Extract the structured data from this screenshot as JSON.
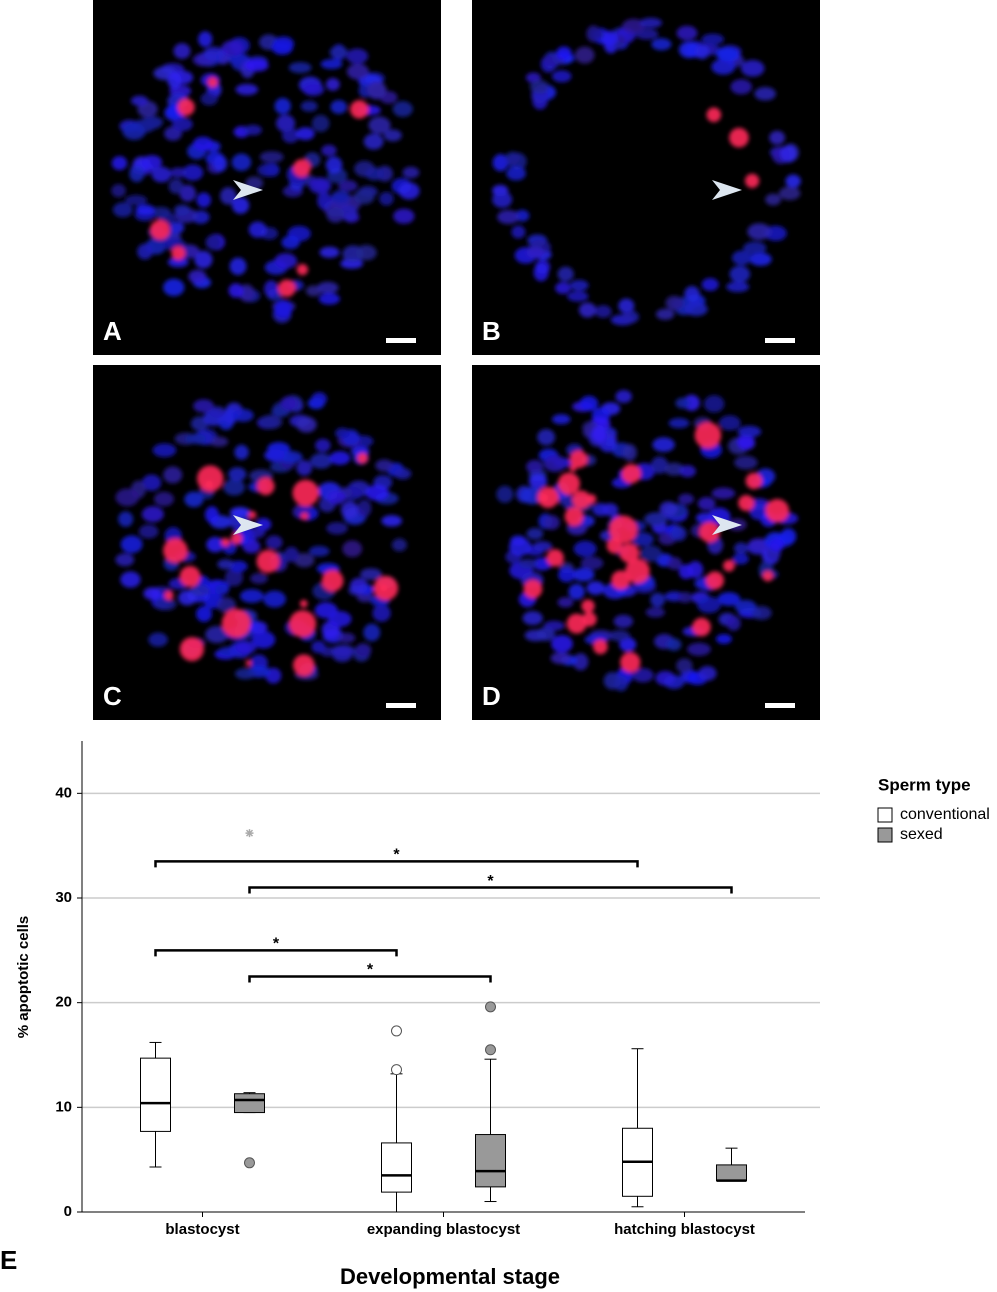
{
  "panels": [
    {
      "label": "A"
    },
    {
      "label": "B"
    },
    {
      "label": "C"
    },
    {
      "label": "D"
    }
  ],
  "figure_label": "E",
  "chart_data": {
    "type": "box",
    "ylabel": "% apoptotic cells",
    "xlabel": "Developmental stage",
    "legend_title": "Sperm type",
    "legend": "right",
    "grid": true,
    "categories": [
      "blastocyst",
      "expanding blastocyst",
      "hatching blastocyst"
    ],
    "ylim": [
      0,
      45
    ],
    "yticks": [
      0,
      10,
      20,
      30,
      40
    ],
    "series": [
      {
        "name": "conventional",
        "color": "#ffffff",
        "values": [
          [
            4.3,
            7.7,
            10.4,
            14.7,
            16.2
          ],
          [
            0,
            1.9,
            3.5,
            6.6,
            13.2
          ],
          [
            0.5,
            1.5,
            4.8,
            8.0,
            15.6
          ]
        ],
        "outliers": [
          [],
          [
            17.3,
            13.6
          ],
          []
        ],
        "extremes": [
          [],
          [],
          []
        ]
      },
      {
        "name": "sexed",
        "color": "#999999",
        "values": [
          [
            9.5,
            9.5,
            10.7,
            11.3,
            11.4
          ],
          [
            1.0,
            2.4,
            3.9,
            7.4,
            14.6
          ],
          [
            3.0,
            3.0,
            3.0,
            4.5,
            6.1
          ]
        ],
        "outliers": [
          [
            4.7
          ],
          [
            19.6,
            15.5
          ],
          []
        ],
        "extremes": [
          [
            36.2
          ],
          [],
          []
        ]
      }
    ],
    "annotations": [
      {
        "text": "*",
        "y": 33.5,
        "from": [
          0,
          0
        ],
        "to": [
          2,
          0
        ]
      },
      {
        "text": "*",
        "y": 31,
        "from": [
          0,
          1
        ],
        "to": [
          2,
          1
        ]
      },
      {
        "text": "*",
        "y": 25,
        "from": [
          0,
          0
        ],
        "to": [
          1,
          0
        ]
      },
      {
        "text": "*",
        "y": 22.5,
        "from": [
          0,
          1
        ],
        "to": [
          1,
          1
        ]
      }
    ]
  }
}
